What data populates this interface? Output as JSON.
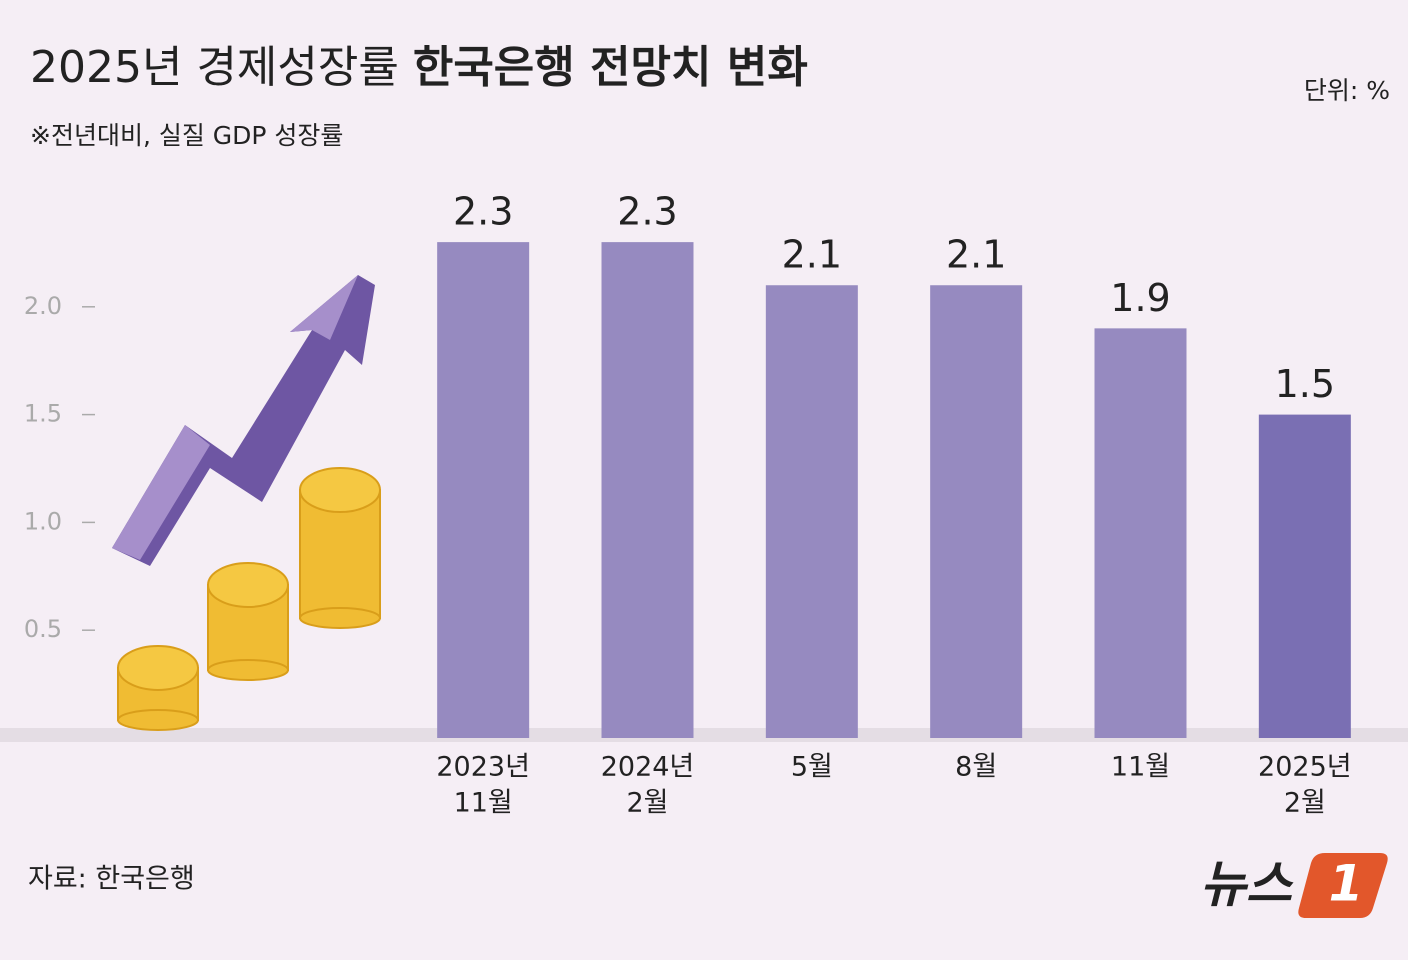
{
  "chart_data": {
    "type": "bar",
    "title": "2025년 경제성장률",
    "title_emphasis": "한국은행 전망치 변화",
    "subtitle": "※전년대비, 실질 GDP 성장률",
    "unit": "단위: %",
    "source": "자료: 한국은행",
    "logo": {
      "text": "뉴스",
      "number": "1"
    },
    "categories": [
      [
        "2023년",
        "11월"
      ],
      [
        "2024년",
        "2월"
      ],
      [
        "5월"
      ],
      [
        "8월"
      ],
      [
        "11월"
      ],
      [
        "2025년",
        "2월"
      ]
    ],
    "values": [
      2.3,
      2.3,
      2.1,
      2.1,
      1.9,
      1.5
    ],
    "colors": [
      "#968ac0",
      "#968ac0",
      "#968ac0",
      "#968ac0",
      "#968ac0",
      "#7a6fb3"
    ],
    "ylim": [
      0,
      2.5
    ],
    "yticks": [
      0.5,
      {
        "value": 1,
        "label": "1.0"
      },
      1.5,
      {
        "value": 2,
        "label": "2.0"
      }
    ]
  }
}
